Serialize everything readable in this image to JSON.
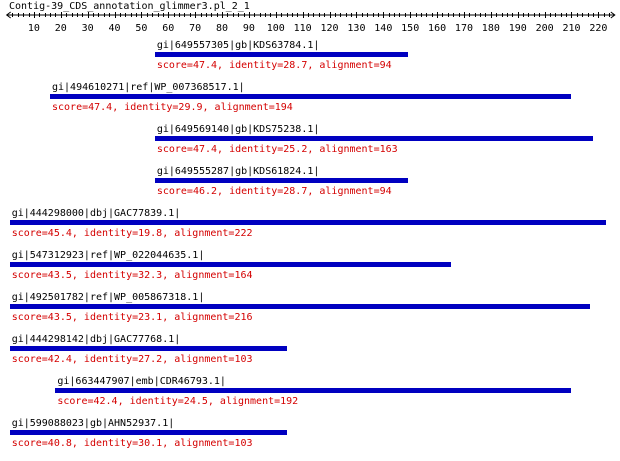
{
  "title": "Contig-39_CDS_annotation_glimmer3.pl_2_1",
  "colors": {
    "bar": "#0000c0",
    "score_text": "#d40000",
    "axis": "#000000"
  },
  "chart_data": {
    "type": "alignment-track",
    "xlim": [
      1,
      225
    ],
    "ticks": [
      10,
      20,
      30,
      40,
      50,
      60,
      70,
      80,
      90,
      100,
      110,
      120,
      130,
      140,
      150,
      160,
      170,
      180,
      190,
      200,
      210,
      220
    ],
    "hits": [
      {
        "name": "gi|649557305|gb|KDS63784.1|",
        "start": 55,
        "end": 149,
        "score_text": "score=47.4, identity=28.7, alignment=94"
      },
      {
        "name": "gi|494610271|ref|WP_007368517.1|",
        "start": 16,
        "end": 210,
        "score_text": "score=47.4, identity=29.9, alignment=194"
      },
      {
        "name": "gi|649569140|gb|KDS75238.1|",
        "start": 55,
        "end": 218,
        "score_text": "score=47.4, identity=25.2, alignment=163"
      },
      {
        "name": "gi|649555287|gb|KDS61824.1|",
        "start": 55,
        "end": 149,
        "score_text": "score=46.2, identity=28.7, alignment=94"
      },
      {
        "name": "gi|444298000|dbj|GAC77839.1|",
        "start": 1,
        "end": 223,
        "score_text": "score=45.4, identity=19.8, alignment=222"
      },
      {
        "name": "gi|547312923|ref|WP_022044635.1|",
        "start": 1,
        "end": 165,
        "score_text": "score=43.5, identity=32.3, alignment=164"
      },
      {
        "name": "gi|492501782|ref|WP_005867318.1|",
        "start": 1,
        "end": 217,
        "score_text": "score=43.5, identity=23.1, alignment=216"
      },
      {
        "name": "gi|444298142|dbj|GAC77768.1|",
        "start": 1,
        "end": 104,
        "score_text": "score=42.4, identity=27.2, alignment=103"
      },
      {
        "name": "gi|663447907|emb|CDR46793.1|",
        "start": 18,
        "end": 210,
        "score_text": "score=42.4, identity=24.5, alignment=192"
      },
      {
        "name": "gi|599088023|gb|AHN52937.1|",
        "start": 1,
        "end": 104,
        "score_text": "score=40.8, identity=30.1, alignment=103"
      }
    ]
  }
}
